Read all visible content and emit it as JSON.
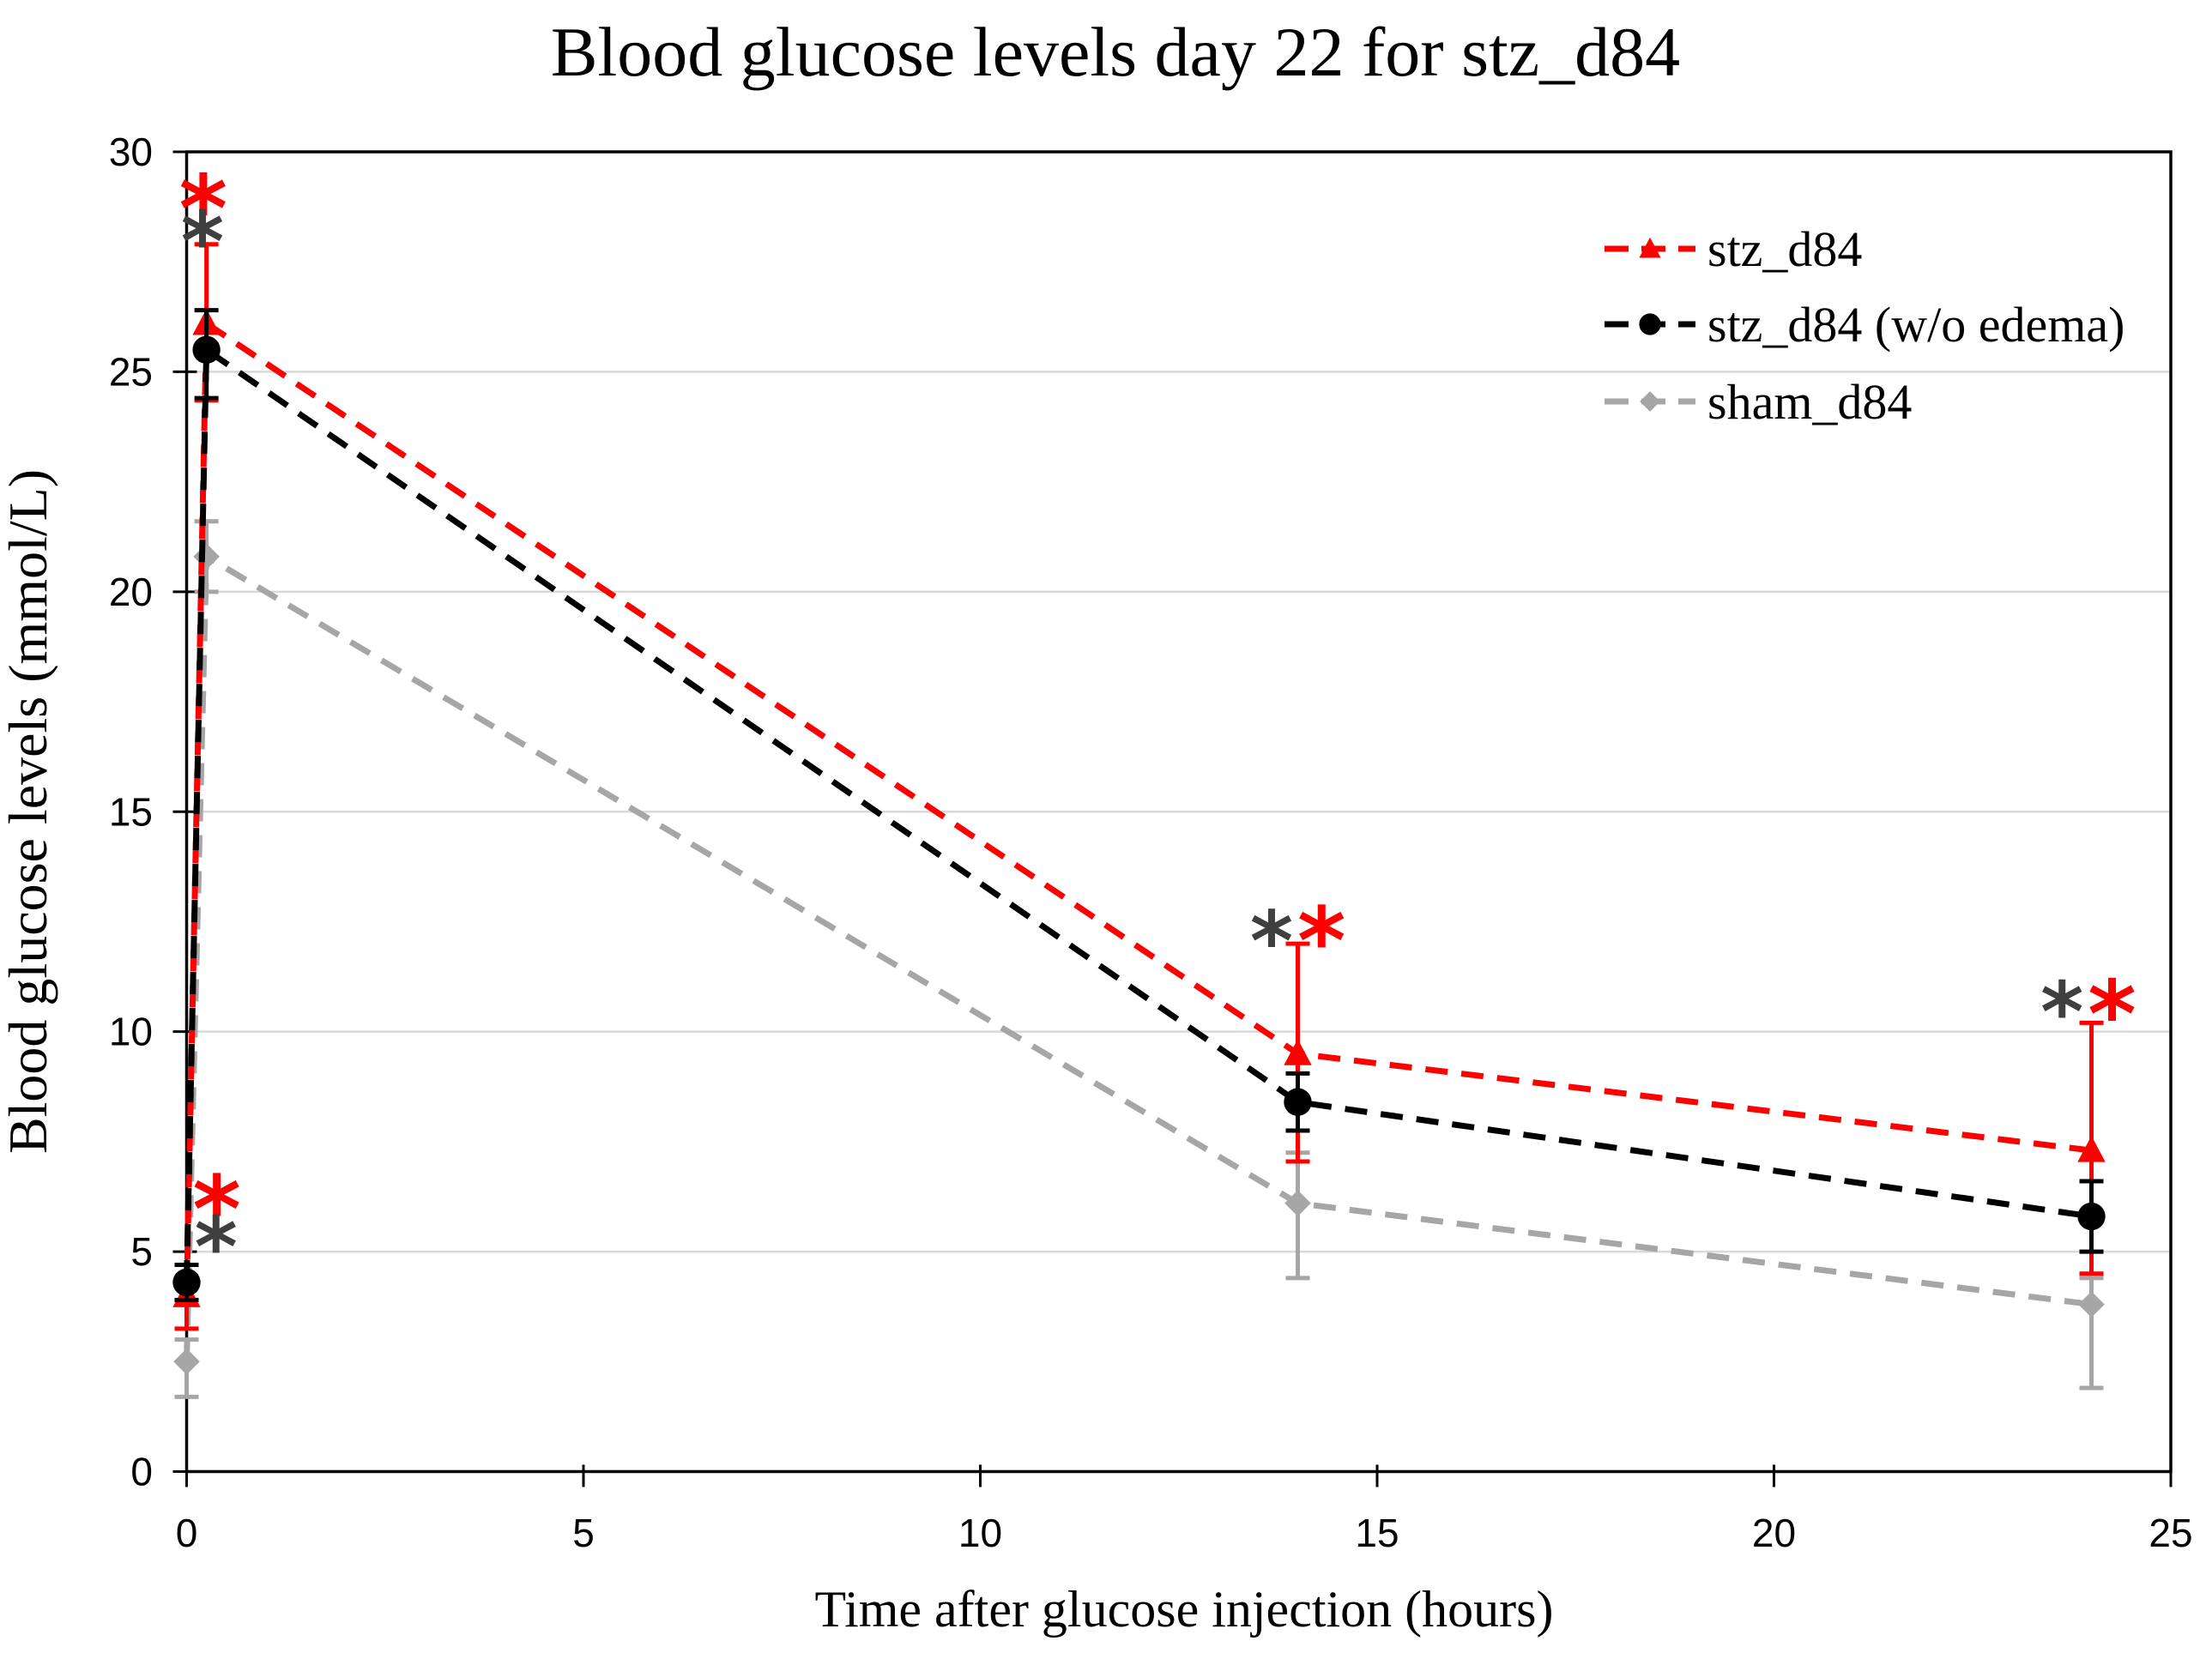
{
  "chart_data": {
    "type": "line",
    "title": "Blood glucose levels day 22 for stz_d84",
    "xlabel": "Time after glucose injection (hours)",
    "ylabel": "Blood glucose levels (mmol/L)",
    "xlim": [
      0,
      25
    ],
    "ylim": [
      0,
      30
    ],
    "xticks": [
      0,
      5,
      10,
      15,
      20,
      25
    ],
    "yticks": [
      0,
      5,
      10,
      15,
      20,
      25,
      30
    ],
    "grid": "horizontal-only",
    "legend_position": "inside-top-right",
    "x": [
      0,
      0.25,
      14,
      24
    ],
    "series": [
      {
        "name": "stz_d84",
        "color": "#FF0000",
        "marker": "triangle",
        "values": [
          4.0,
          26.1,
          9.5,
          7.3
        ],
        "err_up": [
          0.7,
          1.8,
          2.5,
          2.9
        ],
        "err_down": [
          0.75,
          1.75,
          2.45,
          2.8
        ]
      },
      {
        "name": "stz_d84 (w/o edema)",
        "color": "#000000",
        "marker": "circle",
        "values": [
          4.3,
          25.5,
          8.4,
          5.8
        ],
        "err_up": [
          0.4,
          0.9,
          0.65,
          0.8
        ],
        "err_down": [
          0.4,
          1.1,
          0.65,
          0.8
        ]
      },
      {
        "name": "sham_d84",
        "color": "#A6A6A6",
        "marker": "diamond",
        "values": [
          2.5,
          20.8,
          6.1,
          3.8
        ],
        "err_up": [
          0.5,
          0.8,
          1.15,
          0.6
        ],
        "err_down": [
          0.8,
          0.8,
          1.7,
          1.9
        ]
      }
    ],
    "significance_marks": [
      {
        "symbol": "*",
        "color": "#FF0000",
        "x": 0.21,
        "y": 29.05,
        "size": "large"
      },
      {
        "symbol": "*",
        "color": "#3F3F3F",
        "x": 0.2,
        "y": 28.25,
        "size": "medium"
      },
      {
        "symbol": "*",
        "color": "#FF0000",
        "x": 0.38,
        "y": 6.3,
        "size": "large"
      },
      {
        "symbol": "*",
        "color": "#3F3F3F",
        "x": 0.37,
        "y": 5.4,
        "size": "medium"
      },
      {
        "symbol": "*",
        "color": "#3F3F3F",
        "x": 13.67,
        "y": 12.35,
        "size": "medium"
      },
      {
        "symbol": "*",
        "color": "#FF0000",
        "x": 14.3,
        "y": 12.4,
        "size": "large"
      },
      {
        "symbol": "*",
        "color": "#3F3F3F",
        "x": 23.63,
        "y": 10.74,
        "size": "medium"
      },
      {
        "symbol": "*",
        "color": "#FF0000",
        "x": 24.26,
        "y": 10.74,
        "size": "large"
      }
    ],
    "colors": {
      "background": "#FFFFFF",
      "gridline": "#D9D9D9",
      "axis": "#000000",
      "dark_asterisk": "#3F3F3F",
      "red_asterisk": "#FF0000"
    }
  }
}
